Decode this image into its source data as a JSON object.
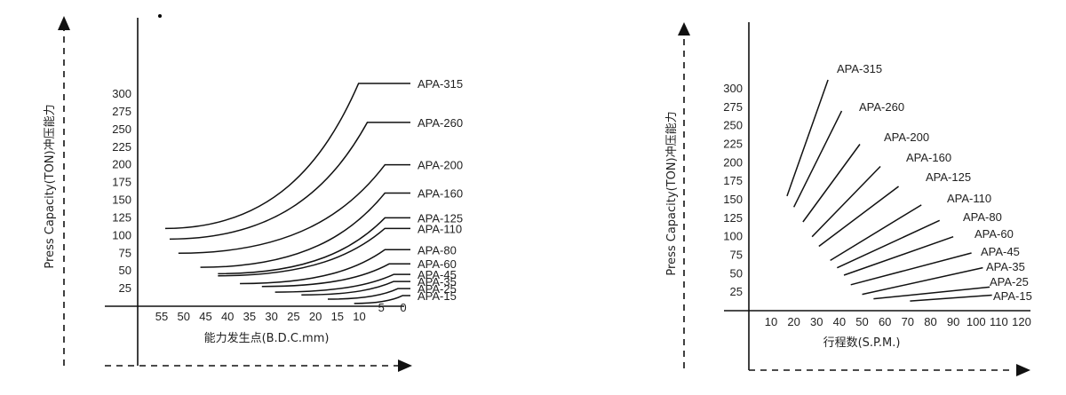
{
  "chart_data": [
    {
      "type": "line",
      "ylabel": "Press Capacity(TON)冲压能力",
      "xlabel": "能力发生点(B.D.C.mm)",
      "y_ticks": [
        "25",
        "50",
        "75",
        "100",
        "125",
        "150",
        "175",
        "200",
        "225",
        "250",
        "275",
        "300"
      ],
      "x_ticks": [
        "55",
        "50",
        "45",
        "40",
        "35",
        "30",
        "25",
        "20",
        "15",
        "10",
        "5",
        "0"
      ],
      "series": [
        {
          "name": "APA-315",
          "start_x": 55,
          "start_y": 110,
          "knee_x": 11,
          "plateau_y": 315
        },
        {
          "name": "APA-260",
          "start_x": 54,
          "start_y": 95,
          "knee_x": 9,
          "plateau_y": 260
        },
        {
          "name": "APA-200",
          "start_x": 52,
          "start_y": 75,
          "knee_x": 5,
          "plateau_y": 200
        },
        {
          "name": "APA-160",
          "start_x": 47,
          "start_y": 55,
          "knee_x": 5,
          "plateau_y": 160
        },
        {
          "name": "APA-125",
          "start_x": 43,
          "start_y": 46,
          "knee_x": 5,
          "plateau_y": 125
        },
        {
          "name": "APA-110",
          "start_x": 43,
          "start_y": 43,
          "knee_x": 5,
          "plateau_y": 110
        },
        {
          "name": "APA-80",
          "start_x": 38,
          "start_y": 32,
          "knee_x": 5,
          "plateau_y": 80
        },
        {
          "name": "APA-60",
          "start_x": 33,
          "start_y": 28,
          "knee_x": 4,
          "plateau_y": 60
        },
        {
          "name": "APA-45",
          "start_x": 30,
          "start_y": 20,
          "knee_x": 3,
          "plateau_y": 45
        },
        {
          "name": "APA-35",
          "start_x": 24,
          "start_y": 16,
          "knee_x": 3,
          "plateau_y": 35
        },
        {
          "name": "APA-25",
          "start_x": 18,
          "start_y": 10,
          "knee_x": 2,
          "plateau_y": 25
        },
        {
          "name": "APA-15",
          "start_x": 12,
          "start_y": 4,
          "knee_x": 1,
          "plateau_y": 15
        }
      ]
    },
    {
      "type": "line",
      "ylabel": "Press Capacity(TON)冲压能力",
      "xlabel": "行程数(S.P.M.)",
      "y_ticks": [
        "25",
        "50",
        "75",
        "100",
        "125",
        "150",
        "175",
        "200",
        "225",
        "250",
        "275",
        "300"
      ],
      "x_ticks": [
        "10",
        "20",
        "30",
        "40",
        "50",
        "60",
        "70",
        "80",
        "90",
        "100",
        "110",
        "120"
      ],
      "series": [
        {
          "name": "APA-315",
          "points": [
            [
              17,
              155
            ],
            [
              35,
              312
            ]
          ]
        },
        {
          "name": "APA-260",
          "points": [
            [
              20,
              140
            ],
            [
              41,
              270
            ]
          ]
        },
        {
          "name": "APA-200",
          "points": [
            [
              24,
              120
            ],
            [
              49,
              225
            ]
          ]
        },
        {
          "name": "APA-160",
          "points": [
            [
              28,
              100
            ],
            [
              58,
              195
            ]
          ]
        },
        {
          "name": "APA-125",
          "points": [
            [
              31,
              87
            ],
            [
              66,
              168
            ]
          ]
        },
        {
          "name": "APA-110",
          "points": [
            [
              36,
              68
            ],
            [
              76,
              143
            ]
          ]
        },
        {
          "name": "APA-80",
          "points": [
            [
              39,
              58
            ],
            [
              84,
              122
            ]
          ]
        },
        {
          "name": "APA-60",
          "points": [
            [
              42,
              48
            ],
            [
              90,
              100
            ]
          ]
        },
        {
          "name": "APA-45",
          "points": [
            [
              45,
              35
            ],
            [
              98,
              78
            ]
          ]
        },
        {
          "name": "APA-35",
          "points": [
            [
              50,
              22
            ],
            [
              103,
              58
            ]
          ]
        },
        {
          "name": "APA-25",
          "points": [
            [
              55,
              16
            ],
            [
              106,
              32
            ]
          ]
        },
        {
          "name": "APA-15",
          "points": [
            [
              71,
              13
            ],
            [
              107,
              21
            ]
          ]
        }
      ]
    }
  ]
}
